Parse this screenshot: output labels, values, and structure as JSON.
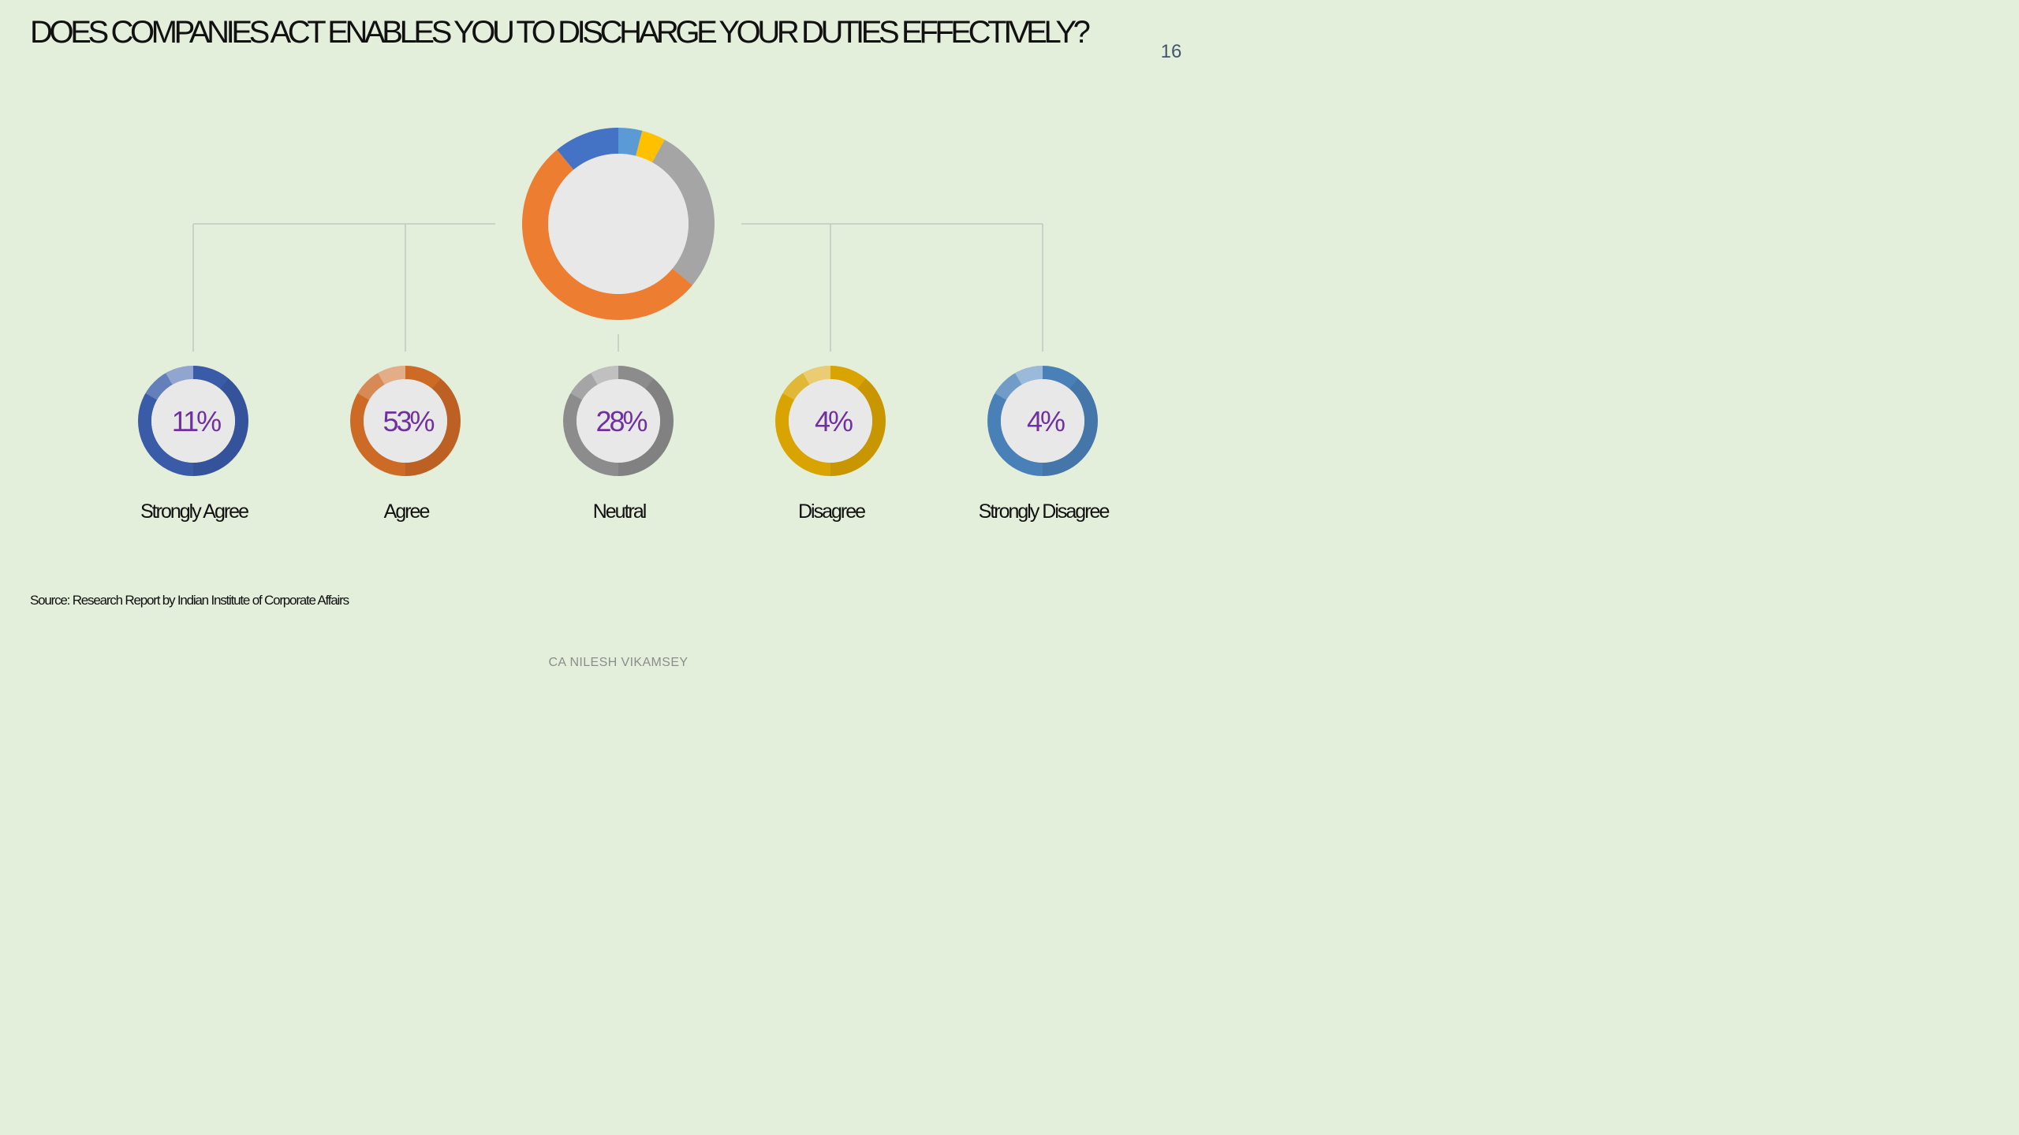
{
  "slide": {
    "title": "DOES COMPANIES ACT ENABLES YOU TO DISCHARGE YOUR DUTIES EFFECTIVELY?",
    "page_number": "16",
    "source": "Source: Research Report by Indian Institute of Corporate Affairs",
    "footer": "CA NILESH VIKAMSEY"
  },
  "chart_data": {
    "type": "pie",
    "title": "DOES COMPANIES ACT ENABLES YOU TO DISCHARGE YOUR DUTIES EFFECTIVELY?",
    "categories": [
      "Strongly Agree",
      "Agree",
      "Neutral",
      "Disagree",
      "Strongly Disagree"
    ],
    "values": [
      11,
      53,
      28,
      4,
      4
    ],
    "value_labels": [
      "11%",
      "53%",
      "28%",
      "4%",
      "4%"
    ],
    "unit": "%",
    "colors": {
      "Strongly Agree": "#4472c4",
      "Agree": "#ed7d31",
      "Neutral": "#a5a5a5",
      "Disagree": "#ffc000",
      "Strongly Disagree": "#5b9bd5"
    },
    "small_ring_colors": {
      "Strongly Agree": "#3a5ba8",
      "Agree": "#cc6a26",
      "Neutral": "#8c8c8c",
      "Disagree": "#d9a300",
      "Strongly Disagree": "#4a80b8"
    },
    "overall_ring_order": [
      "Strongly Disagree",
      "Disagree",
      "Neutral",
      "Agree",
      "Strongly Agree"
    ],
    "value_label_color": "#7030a0",
    "connector_color": "#c4c9c0",
    "center_fill": "#e8e8e8",
    "legend": "none"
  }
}
